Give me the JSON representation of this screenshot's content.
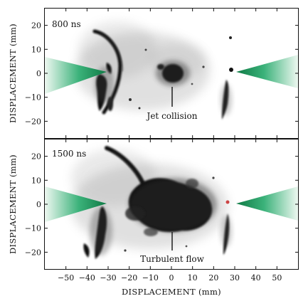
{
  "figure": {
    "panels": [
      {
        "time_label": "800 ns",
        "annotation": "Jet collision"
      },
      {
        "time_label": "1500 ns",
        "annotation": "Turbulent flow"
      }
    ],
    "y_axis_label": "DISPLACEMENT (mm)",
    "x_axis_label": "DISPLACEMENT (mm)",
    "y_ticks": [
      20,
      10,
      0,
      -10,
      -20
    ],
    "x_ticks": [
      -50,
      -40,
      -30,
      -20,
      -10,
      0,
      10,
      20,
      30,
      40,
      50
    ],
    "x_range": [
      -60,
      60
    ],
    "y_range": [
      -27,
      27
    ],
    "beam_color": "#1a9a5a",
    "image_color": "#111111"
  }
}
